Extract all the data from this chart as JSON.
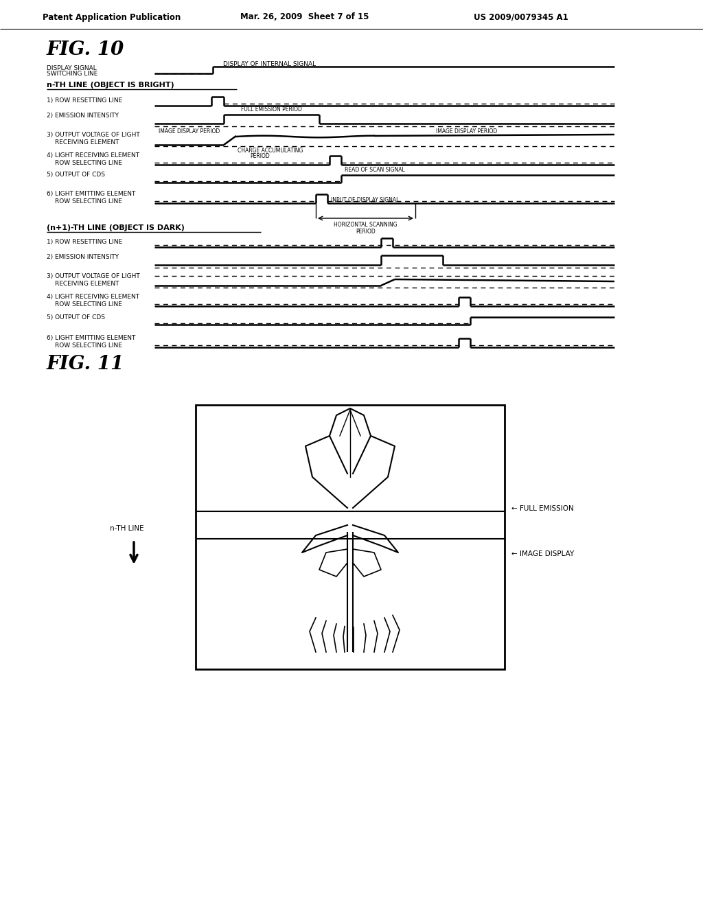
{
  "bg_color": "#ffffff",
  "header1": "Patent Application Publication",
  "header2": "Mar. 26, 2009  Sheet 7 of 15",
  "header3": "US 2009/0079345 A1",
  "fig10_title": "FIG. 10",
  "fig11_title": "FIG. 11"
}
